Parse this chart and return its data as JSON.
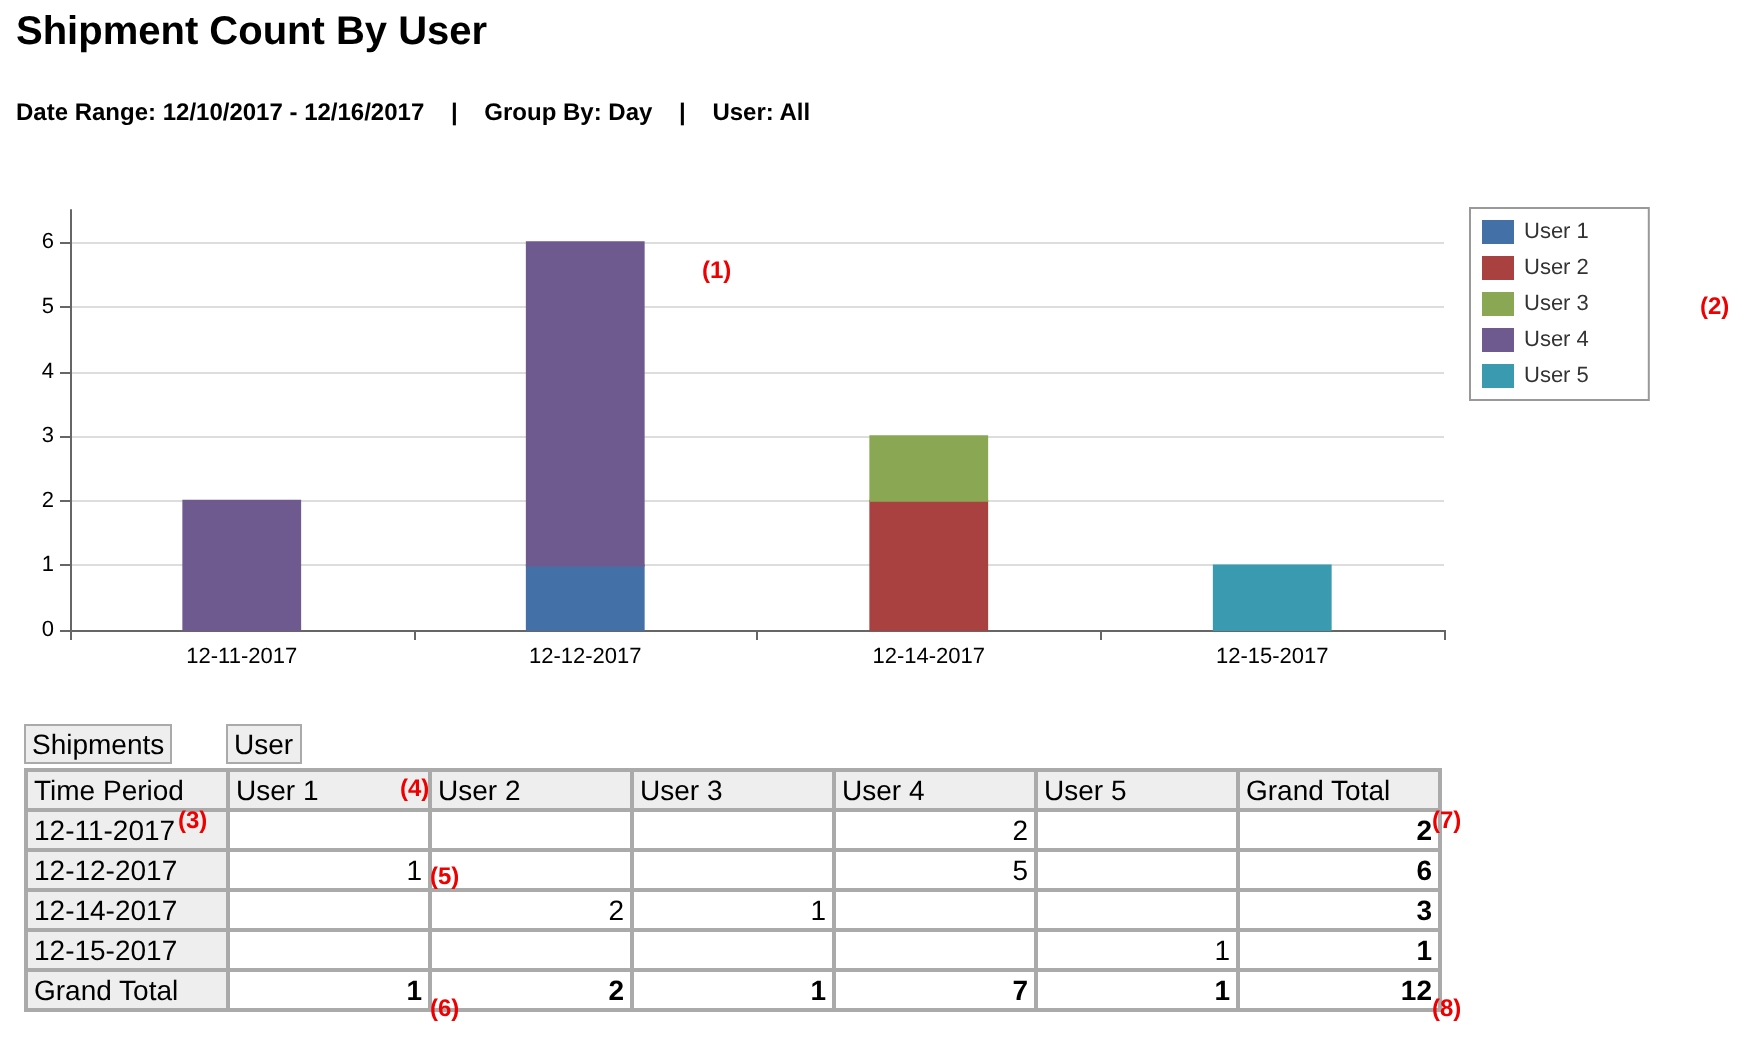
{
  "chart_data": {
    "type": "bar",
    "title": "Shipment Count By User",
    "subtitle": "Date Range: 12/10/2017 - 12/16/2017    |    Group By: Day    |    User: All",
    "categories": [
      "12-11-2017",
      "12-12-2017",
      "12-14-2017",
      "12-15-2017"
    ],
    "series": [
      {
        "name": "User 1",
        "color": "#4470a8",
        "values": [
          null,
          1,
          null,
          null
        ]
      },
      {
        "name": "User 2",
        "color": "#a8413f",
        "values": [
          null,
          null,
          2,
          null
        ]
      },
      {
        "name": "User 3",
        "color": "#8aa853",
        "values": [
          null,
          null,
          1,
          null
        ]
      },
      {
        "name": "User 4",
        "color": "#6e5a8e",
        "values": [
          2,
          5,
          null,
          null
        ]
      },
      {
        "name": "User 5",
        "color": "#3a9bb0",
        "values": [
          null,
          null,
          null,
          1
        ]
      }
    ],
    "stacked": true,
    "ylim": [
      0,
      6.5
    ],
    "yticks": [
      0,
      1,
      2,
      3,
      4,
      5,
      6
    ],
    "grid": "y",
    "legend": "right",
    "annotations": [
      "Shipments",
      "User",
      "Time Period",
      "Grand Total",
      "Grand Total",
      "2",
      "2",
      "1",
      "5",
      "6",
      "2",
      "1",
      "3",
      "1",
      "1",
      "1",
      "2",
      "1",
      "7",
      "1",
      "12",
      "(1)",
      "(2)",
      "(3)",
      "(4)",
      "(5)",
      "(6)",
      "(7)",
      "(8)"
    ]
  }
}
